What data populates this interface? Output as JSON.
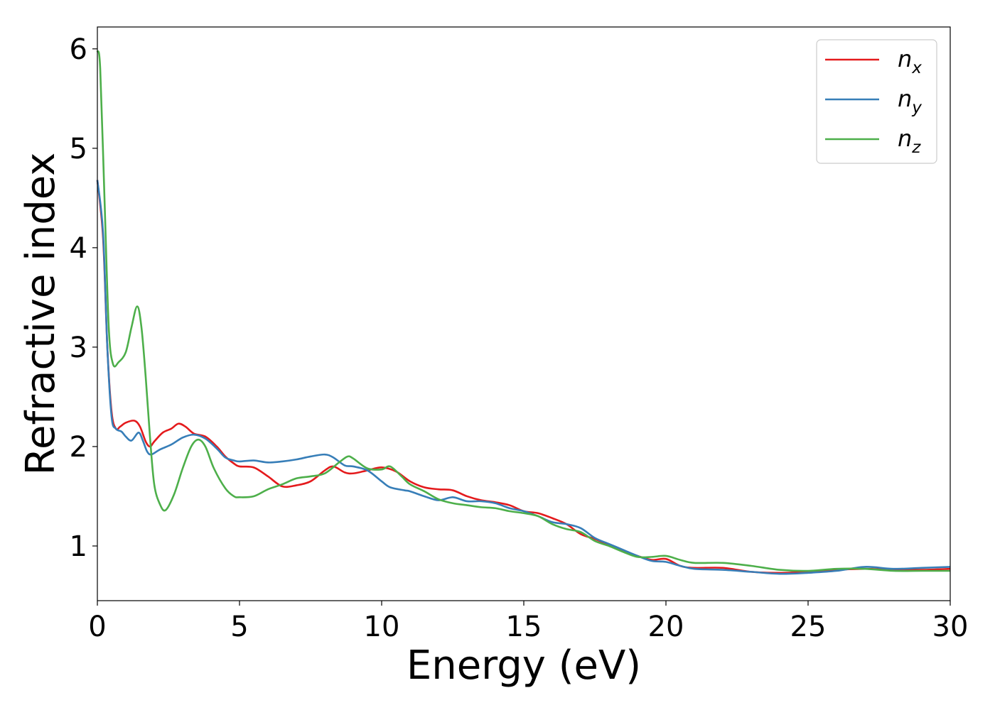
{
  "chart_data": {
    "type": "line",
    "xlabel": "Energy (eV)",
    "ylabel": "Refractive index",
    "xlim": [
      0,
      30
    ],
    "ylim": [
      0.45,
      6.22
    ],
    "xticks": [
      "0",
      "5",
      "10",
      "15",
      "20",
      "25",
      "30"
    ],
    "yticks": [
      "1",
      "2",
      "3",
      "4",
      "5",
      "6"
    ],
    "grid": false,
    "legend_position": "top-right",
    "series": [
      {
        "name": "n_x",
        "label_base": "n",
        "label_sub": "x",
        "color": "#e41a1c",
        "points": [
          [
            0,
            4.68
          ],
          [
            0.2,
            4.1
          ],
          [
            0.35,
            3.0
          ],
          [
            0.5,
            2.35
          ],
          [
            0.65,
            2.18
          ],
          [
            0.8,
            2.2
          ],
          [
            1.0,
            2.24
          ],
          [
            1.3,
            2.26
          ],
          [
            1.5,
            2.2
          ],
          [
            1.7,
            2.05
          ],
          [
            1.85,
            2.0
          ],
          [
            2.0,
            2.05
          ],
          [
            2.3,
            2.14
          ],
          [
            2.6,
            2.18
          ],
          [
            2.85,
            2.23
          ],
          [
            3.1,
            2.2
          ],
          [
            3.4,
            2.13
          ],
          [
            3.8,
            2.1
          ],
          [
            4.2,
            2.0
          ],
          [
            4.5,
            1.9
          ],
          [
            4.8,
            1.83
          ],
          [
            5.0,
            1.8
          ],
          [
            5.5,
            1.79
          ],
          [
            6.0,
            1.7
          ],
          [
            6.5,
            1.6
          ],
          [
            7.0,
            1.61
          ],
          [
            7.5,
            1.65
          ],
          [
            8.0,
            1.76
          ],
          [
            8.3,
            1.8
          ],
          [
            8.7,
            1.74
          ],
          [
            9.0,
            1.73
          ],
          [
            9.5,
            1.76
          ],
          [
            10.0,
            1.79
          ],
          [
            10.5,
            1.75
          ],
          [
            11.0,
            1.65
          ],
          [
            11.5,
            1.59
          ],
          [
            12.0,
            1.57
          ],
          [
            12.5,
            1.56
          ],
          [
            13.0,
            1.5
          ],
          [
            13.5,
            1.46
          ],
          [
            14.0,
            1.44
          ],
          [
            14.5,
            1.41
          ],
          [
            15.0,
            1.35
          ],
          [
            15.5,
            1.33
          ],
          [
            16.0,
            1.28
          ],
          [
            16.5,
            1.22
          ],
          [
            17.0,
            1.12
          ],
          [
            17.5,
            1.07
          ],
          [
            18.0,
            1.01
          ],
          [
            18.5,
            0.95
          ],
          [
            19.0,
            0.9
          ],
          [
            19.5,
            0.86
          ],
          [
            20.0,
            0.87
          ],
          [
            20.5,
            0.8
          ],
          [
            21.0,
            0.78
          ],
          [
            22.0,
            0.78
          ],
          [
            23.0,
            0.74
          ],
          [
            24.0,
            0.73
          ],
          [
            25.0,
            0.74
          ],
          [
            26.0,
            0.76
          ],
          [
            27.0,
            0.77
          ],
          [
            28.0,
            0.76
          ],
          [
            29.0,
            0.76
          ],
          [
            30.0,
            0.77
          ]
        ]
      },
      {
        "name": "n_y",
        "label_base": "n",
        "label_sub": "y",
        "color": "#377eb8",
        "points": [
          [
            0,
            4.68
          ],
          [
            0.2,
            4.15
          ],
          [
            0.35,
            3.0
          ],
          [
            0.5,
            2.3
          ],
          [
            0.65,
            2.18
          ],
          [
            0.85,
            2.15
          ],
          [
            1.0,
            2.1
          ],
          [
            1.2,
            2.06
          ],
          [
            1.45,
            2.14
          ],
          [
            1.6,
            2.06
          ],
          [
            1.75,
            1.95
          ],
          [
            1.9,
            1.92
          ],
          [
            2.2,
            1.97
          ],
          [
            2.6,
            2.02
          ],
          [
            3.0,
            2.09
          ],
          [
            3.4,
            2.12
          ],
          [
            3.8,
            2.08
          ],
          [
            4.2,
            1.98
          ],
          [
            4.5,
            1.89
          ],
          [
            4.8,
            1.86
          ],
          [
            5.0,
            1.85
          ],
          [
            5.5,
            1.86
          ],
          [
            6.0,
            1.84
          ],
          [
            6.5,
            1.85
          ],
          [
            7.0,
            1.87
          ],
          [
            7.5,
            1.9
          ],
          [
            8.0,
            1.92
          ],
          [
            8.3,
            1.89
          ],
          [
            8.7,
            1.81
          ],
          [
            9.0,
            1.8
          ],
          [
            9.5,
            1.76
          ],
          [
            10.0,
            1.65
          ],
          [
            10.3,
            1.59
          ],
          [
            10.8,
            1.56
          ],
          [
            11.0,
            1.55
          ],
          [
            11.5,
            1.5
          ],
          [
            12.0,
            1.46
          ],
          [
            12.5,
            1.49
          ],
          [
            13.0,
            1.45
          ],
          [
            13.5,
            1.45
          ],
          [
            14.0,
            1.43
          ],
          [
            14.5,
            1.38
          ],
          [
            15.0,
            1.35
          ],
          [
            15.5,
            1.3
          ],
          [
            16.0,
            1.24
          ],
          [
            16.5,
            1.22
          ],
          [
            17.0,
            1.18
          ],
          [
            17.5,
            1.08
          ],
          [
            18.0,
            1.02
          ],
          [
            18.5,
            0.96
          ],
          [
            19.0,
            0.9
          ],
          [
            19.5,
            0.85
          ],
          [
            20.0,
            0.84
          ],
          [
            20.5,
            0.8
          ],
          [
            21.0,
            0.77
          ],
          [
            22.0,
            0.76
          ],
          [
            23.0,
            0.74
          ],
          [
            24.0,
            0.72
          ],
          [
            25.0,
            0.73
          ],
          [
            26.0,
            0.75
          ],
          [
            27.0,
            0.79
          ],
          [
            28.0,
            0.77
          ],
          [
            29.0,
            0.78
          ],
          [
            30.0,
            0.79
          ]
        ]
      },
      {
        "name": "n_z",
        "label_base": "n",
        "label_sub": "z",
        "color": "#4daf4a",
        "points": [
          [
            0,
            5.98
          ],
          [
            0.1,
            5.8
          ],
          [
            0.25,
            4.5
          ],
          [
            0.4,
            3.2
          ],
          [
            0.55,
            2.83
          ],
          [
            0.75,
            2.85
          ],
          [
            1.0,
            2.95
          ],
          [
            1.2,
            3.2
          ],
          [
            1.4,
            3.41
          ],
          [
            1.55,
            3.2
          ],
          [
            1.7,
            2.7
          ],
          [
            1.85,
            2.1
          ],
          [
            2.0,
            1.62
          ],
          [
            2.2,
            1.42
          ],
          [
            2.4,
            1.36
          ],
          [
            2.7,
            1.52
          ],
          [
            3.0,
            1.78
          ],
          [
            3.3,
            2.0
          ],
          [
            3.55,
            2.07
          ],
          [
            3.8,
            2.0
          ],
          [
            4.1,
            1.78
          ],
          [
            4.5,
            1.58
          ],
          [
            4.8,
            1.5
          ],
          [
            5.0,
            1.49
          ],
          [
            5.5,
            1.5
          ],
          [
            6.0,
            1.57
          ],
          [
            6.5,
            1.62
          ],
          [
            7.0,
            1.68
          ],
          [
            7.5,
            1.7
          ],
          [
            8.0,
            1.73
          ],
          [
            8.5,
            1.84
          ],
          [
            8.8,
            1.9
          ],
          [
            9.0,
            1.88
          ],
          [
            9.5,
            1.78
          ],
          [
            10.0,
            1.77
          ],
          [
            10.3,
            1.8
          ],
          [
            10.7,
            1.7
          ],
          [
            11.0,
            1.62
          ],
          [
            11.5,
            1.55
          ],
          [
            12.0,
            1.47
          ],
          [
            12.5,
            1.43
          ],
          [
            13.0,
            1.41
          ],
          [
            13.5,
            1.39
          ],
          [
            14.0,
            1.38
          ],
          [
            14.5,
            1.35
          ],
          [
            15.0,
            1.33
          ],
          [
            15.5,
            1.3
          ],
          [
            16.0,
            1.22
          ],
          [
            16.5,
            1.17
          ],
          [
            17.0,
            1.14
          ],
          [
            17.5,
            1.05
          ],
          [
            18.0,
            1.0
          ],
          [
            18.5,
            0.94
          ],
          [
            19.0,
            0.89
          ],
          [
            19.5,
            0.89
          ],
          [
            20.0,
            0.9
          ],
          [
            20.5,
            0.86
          ],
          [
            21.0,
            0.83
          ],
          [
            22.0,
            0.83
          ],
          [
            23.0,
            0.8
          ],
          [
            24.0,
            0.76
          ],
          [
            25.0,
            0.75
          ],
          [
            26.0,
            0.77
          ],
          [
            27.0,
            0.77
          ],
          [
            28.0,
            0.75
          ],
          [
            29.0,
            0.75
          ],
          [
            30.0,
            0.75
          ]
        ]
      }
    ]
  }
}
